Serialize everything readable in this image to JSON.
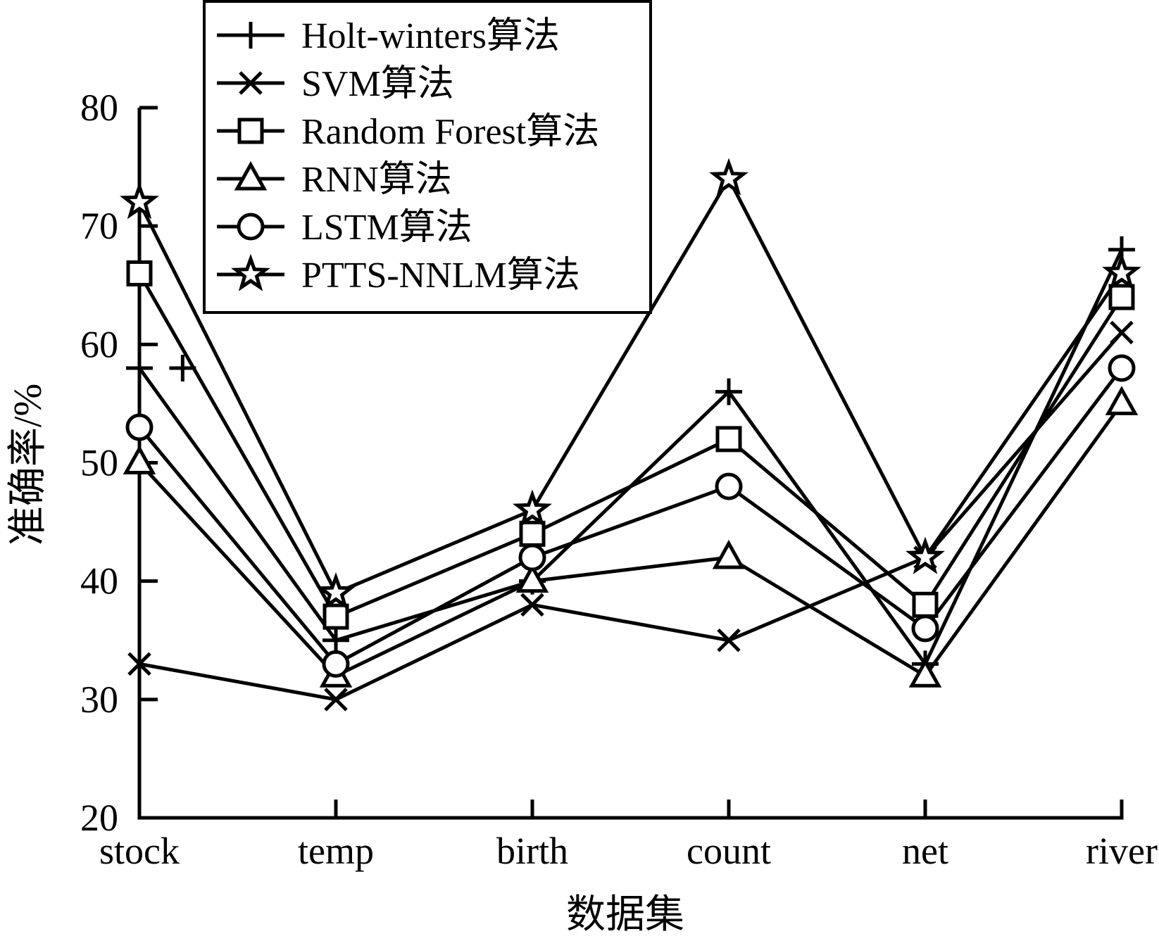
{
  "chart_data": {
    "type": "line",
    "title": "",
    "xlabel": "数据集",
    "ylabel": "准确率/%",
    "categories": [
      "stock",
      "temp",
      "birth",
      "count",
      "net",
      "river"
    ],
    "ylim": [
      20,
      80
    ],
    "yticks": [
      20,
      30,
      40,
      50,
      60,
      70,
      80
    ],
    "grid": false,
    "legend_position": "top-center",
    "series": [
      {
        "name": "Holt-winters算法",
        "marker": "plus",
        "values": [
          58,
          35,
          40,
          56,
          33,
          68
        ]
      },
      {
        "name": "SVM算法",
        "marker": "x",
        "values": [
          33,
          30,
          38,
          35,
          42,
          61
        ]
      },
      {
        "name": "Random Forest算法",
        "marker": "square",
        "values": [
          66,
          37,
          44,
          52,
          38,
          64
        ]
      },
      {
        "name": "RNN算法",
        "marker": "triangle",
        "values": [
          50,
          32,
          40,
          42,
          32,
          55
        ]
      },
      {
        "name": "LSTM算法",
        "marker": "circle",
        "values": [
          53,
          33,
          42,
          48,
          36,
          58
        ]
      },
      {
        "name": "PTTS-NNLM算法",
        "marker": "star",
        "values": [
          72,
          39,
          46,
          74,
          42,
          66
        ]
      }
    ],
    "annotations": [
      {
        "marker": "plus",
        "x_between": [
          "stock",
          "temp"
        ],
        "y": 58
      }
    ]
  }
}
